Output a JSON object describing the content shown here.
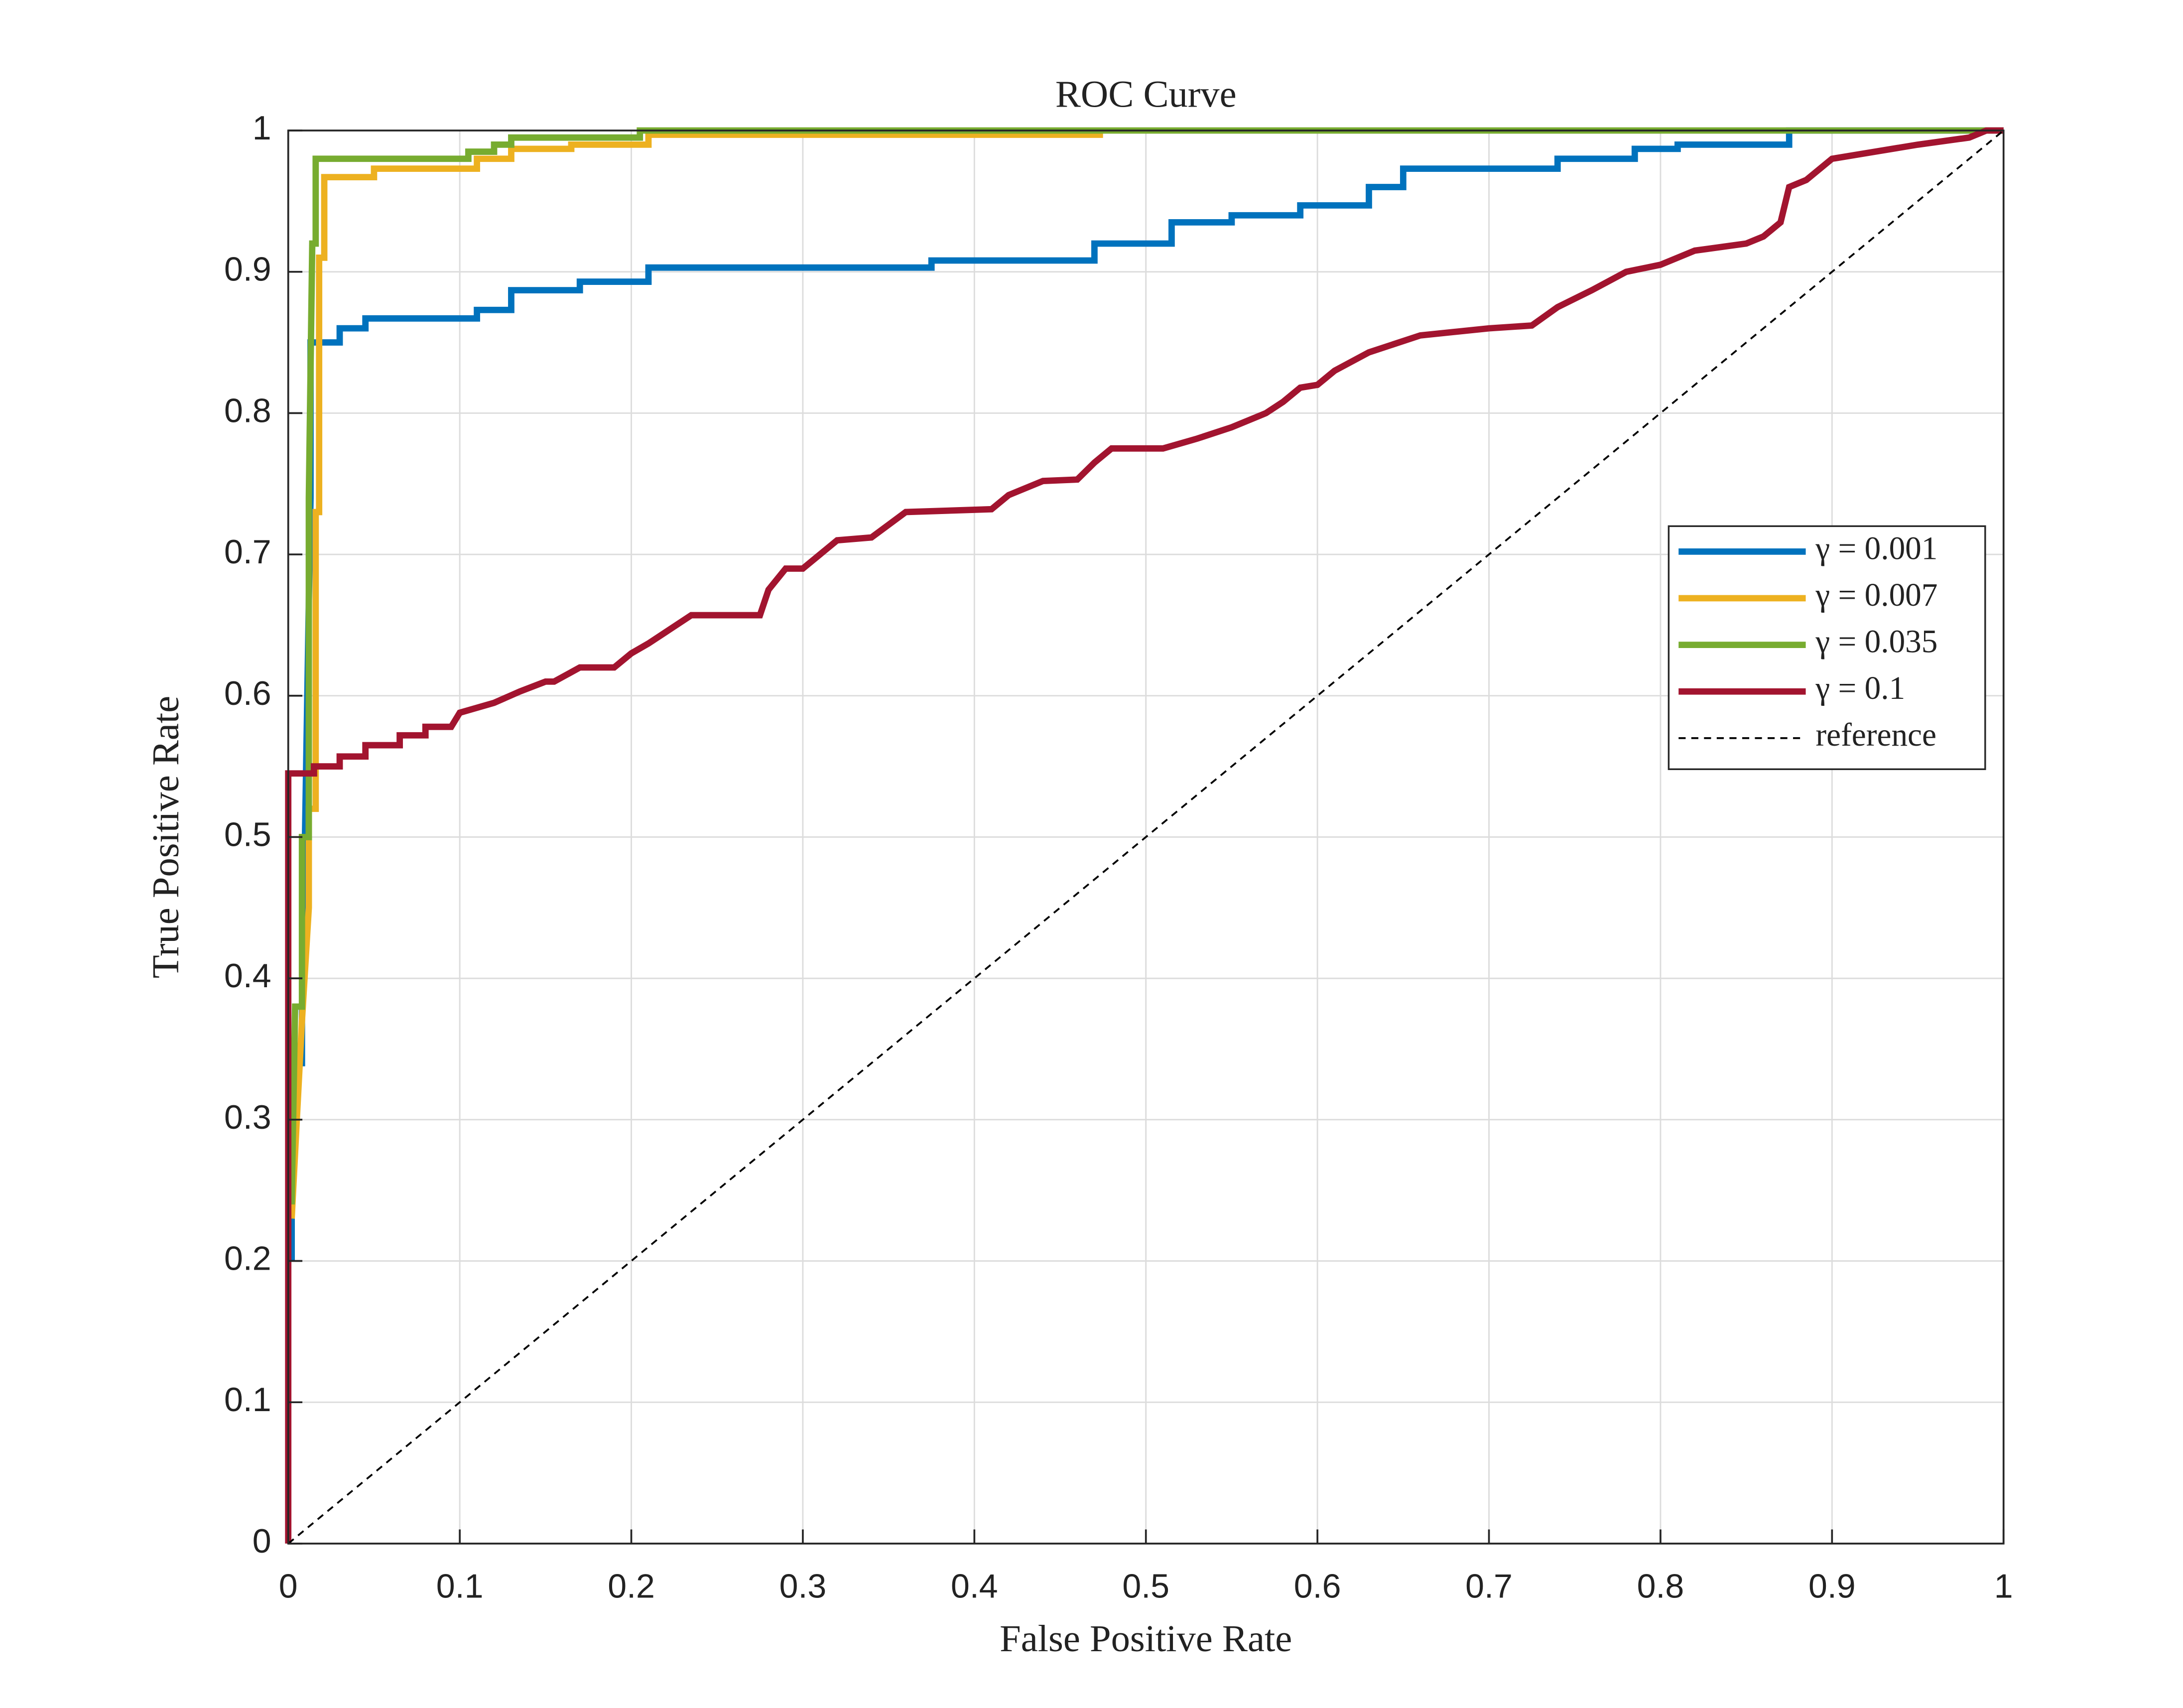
{
  "chart_data": {
    "type": "line",
    "title": "ROC Curve",
    "xlabel": "False Positive Rate",
    "ylabel": "True Positive Rate",
    "xlim": [
      0,
      1
    ],
    "ylim": [
      0,
      1
    ],
    "xticks": [
      0,
      0.1,
      0.2,
      0.3,
      0.4,
      0.5,
      0.6,
      0.7,
      0.8,
      0.9,
      1
    ],
    "yticks": [
      0,
      0.1,
      0.2,
      0.3,
      0.4,
      0.5,
      0.6,
      0.7,
      0.8,
      0.9,
      1
    ],
    "grid": true,
    "legend": "east",
    "series": [
      {
        "name": "γ = 0.001",
        "color": "#0072BD",
        "linestyle": "solid",
        "x": [
          0.002,
          0.002,
          0.008,
          0.008,
          0.013,
          0.013,
          0.03,
          0.03,
          0.045,
          0.045,
          0.11,
          0.11,
          0.13,
          0.13,
          0.17,
          0.17,
          0.21,
          0.21,
          0.375,
          0.375,
          0.47,
          0.47,
          0.515,
          0.515,
          0.55,
          0.55,
          0.59,
          0.59,
          0.63,
          0.63,
          0.65,
          0.65,
          0.74,
          0.74,
          0.785,
          0.785,
          0.81,
          0.81,
          0.875,
          0.875,
          1
        ],
        "values": [
          0.2,
          0.34,
          0.34,
          0.37,
          0.74,
          0.85,
          0.85,
          0.86,
          0.86,
          0.867,
          0.867,
          0.873,
          0.873,
          0.887,
          0.887,
          0.893,
          0.893,
          0.903,
          0.903,
          0.908,
          0.908,
          0.92,
          0.92,
          0.935,
          0.935,
          0.94,
          0.94,
          0.947,
          0.947,
          0.96,
          0.96,
          0.973,
          0.973,
          0.98,
          0.98,
          0.987,
          0.987,
          0.99,
          0.99,
          1,
          1
        ]
      },
      {
        "name": "γ = 0.007",
        "color": "#EDB120",
        "linestyle": "solid",
        "x": [
          0.002,
          0.008,
          0.012,
          0.012,
          0.016,
          0.016,
          0.018,
          0.018,
          0.021,
          0.021,
          0.05,
          0.05,
          0.11,
          0.11,
          0.13,
          0.13,
          0.165,
          0.165,
          0.21,
          0.21,
          0.475
        ],
        "values": [
          0.23,
          0.37,
          0.45,
          0.52,
          0.52,
          0.73,
          0.73,
          0.91,
          0.91,
          0.967,
          0.967,
          0.973,
          0.973,
          0.98,
          0.98,
          0.987,
          0.987,
          0.99,
          0.99,
          0.997,
          0.997
        ]
      },
      {
        "name": "γ = 0.035",
        "color": "#77AC30",
        "linestyle": "solid",
        "x": [
          0.002,
          0.004,
          0.008,
          0.008,
          0.012,
          0.012,
          0.014,
          0.016,
          0.016,
          0.105,
          0.105,
          0.12,
          0.12,
          0.13,
          0.13,
          0.205,
          0.205,
          1
        ],
        "values": [
          0.24,
          0.38,
          0.38,
          0.5,
          0.5,
          0.74,
          0.92,
          0.92,
          0.98,
          0.98,
          0.985,
          0.985,
          0.99,
          0.99,
          0.995,
          0.995,
          1,
          1
        ]
      },
      {
        "name": "γ = 0.1",
        "color": "#A2142F",
        "linestyle": "solid",
        "x": [
          0,
          0,
          0.015,
          0.015,
          0.03,
          0.03,
          0.045,
          0.045,
          0.065,
          0.065,
          0.08,
          0.08,
          0.095,
          0.1,
          0.12,
          0.135,
          0.15,
          0.155,
          0.17,
          0.19,
          0.2,
          0.21,
          0.22,
          0.235,
          0.275,
          0.28,
          0.29,
          0.3,
          0.32,
          0.34,
          0.36,
          0.41,
          0.42,
          0.44,
          0.46,
          0.47,
          0.48,
          0.51,
          0.53,
          0.55,
          0.57,
          0.58,
          0.59,
          0.6,
          0.61,
          0.63,
          0.66,
          0.7,
          0.725,
          0.74,
          0.76,
          0.78,
          0.8,
          0.82,
          0.85,
          0.86,
          0.87,
          0.875,
          0.885,
          0.9,
          0.925,
          0.95,
          0.98,
          0.99,
          1
        ],
        "values": [
          0,
          0.545,
          0.545,
          0.55,
          0.55,
          0.557,
          0.557,
          0.565,
          0.565,
          0.572,
          0.572,
          0.578,
          0.578,
          0.588,
          0.595,
          0.603,
          0.61,
          0.61,
          0.62,
          0.62,
          0.63,
          0.637,
          0.645,
          0.657,
          0.657,
          0.675,
          0.69,
          0.69,
          0.71,
          0.712,
          0.73,
          0.732,
          0.742,
          0.752,
          0.753,
          0.765,
          0.775,
          0.775,
          0.782,
          0.79,
          0.8,
          0.808,
          0.818,
          0.82,
          0.83,
          0.843,
          0.855,
          0.86,
          0.862,
          0.875,
          0.887,
          0.9,
          0.905,
          0.915,
          0.92,
          0.925,
          0.935,
          0.96,
          0.965,
          0.98,
          0.985,
          0.99,
          0.995,
          1,
          1
        ]
      },
      {
        "name": "reference",
        "color": "#000000",
        "linestyle": "dashed",
        "x": [
          0,
          1
        ],
        "values": [
          0,
          1
        ]
      }
    ]
  }
}
